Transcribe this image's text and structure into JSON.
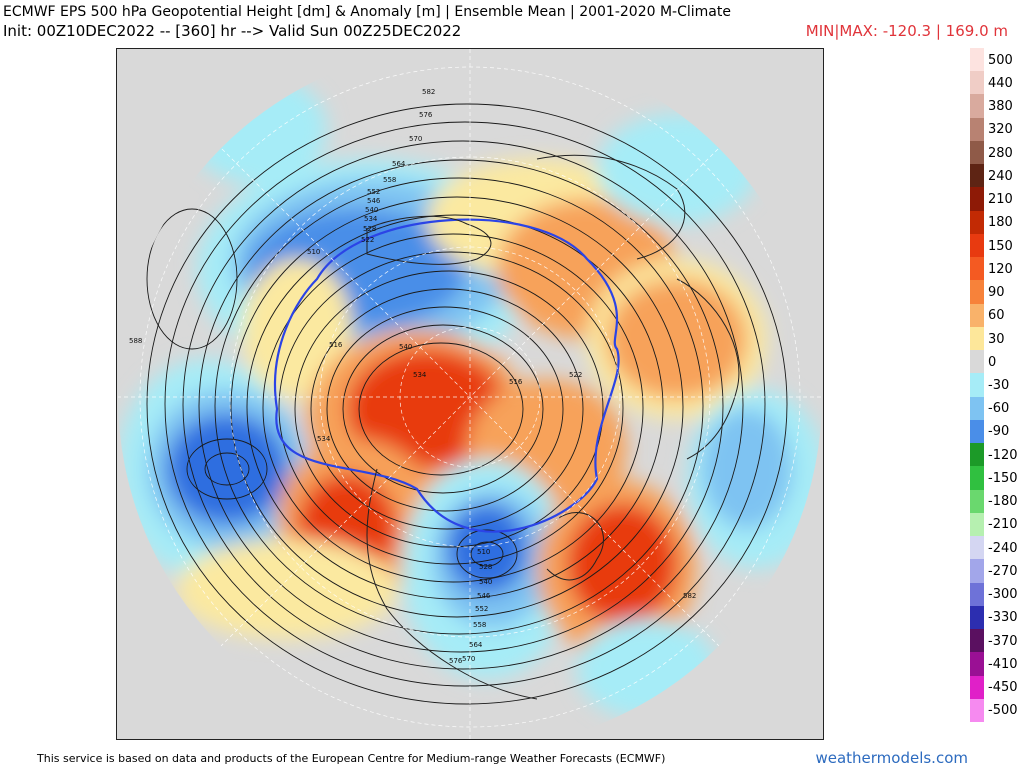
{
  "header": {
    "title": "ECMWF EPS 500 hPa Geopotential Height [dm] & Anomaly [m] | Ensemble Mean | 2001-2020 M-Climate",
    "init_line": "Init: 00Z10DEC2022 -- [360] hr --> Valid Sun 00Z25DEC2022",
    "minmax": "MIN|MAX: -120.3 | 169.0 m"
  },
  "map": {
    "contour_labels": [
      "582",
      "576",
      "570",
      "564",
      "558",
      "552",
      "546",
      "540",
      "534",
      "528",
      "522",
      "516",
      "510",
      "540",
      "534",
      "522",
      "516",
      "510",
      "528",
      "534",
      "540",
      "546",
      "552",
      "558",
      "564",
      "570",
      "576",
      "582",
      "588"
    ],
    "colors": {
      "ocean_land_bg": "#d9d9d9",
      "strong_positive": "#e83a10",
      "positive": "#f7a25a",
      "weak_positive": "#fbe9a0",
      "weak_negative": "#a6ecf7",
      "negative": "#68a8ec",
      "strong_negative": "#2f6ee0",
      "contour_540": "#2b44e6"
    }
  },
  "legend": {
    "items": [
      {
        "label": "500",
        "color": "#fde3e0"
      },
      {
        "label": "440",
        "color": "#f0cdc6"
      },
      {
        "label": "380",
        "color": "#d9aa9e"
      },
      {
        "label": "320",
        "color": "#b88272"
      },
      {
        "label": "280",
        "color": "#8f5a48"
      },
      {
        "label": "240",
        "color": "#5e2414"
      },
      {
        "label": "210",
        "color": "#8e1a06"
      },
      {
        "label": "180",
        "color": "#c22a04"
      },
      {
        "label": "150",
        "color": "#e83a10"
      },
      {
        "label": "120",
        "color": "#f45a22"
      },
      {
        "label": "90",
        "color": "#f7823a"
      },
      {
        "label": "60",
        "color": "#f9b26a"
      },
      {
        "label": "30",
        "color": "#fde79a"
      },
      {
        "label": "0",
        "color": "#d9d9d9"
      },
      {
        "label": "-30",
        "color": "#a6ecf7"
      },
      {
        "label": "-60",
        "color": "#7ec3f2"
      },
      {
        "label": "-90",
        "color": "#4a8ee8"
      },
      {
        "label": "-120",
        "color": "#1c9a28"
      },
      {
        "label": "-150",
        "color": "#30c040"
      },
      {
        "label": "-180",
        "color": "#6ad86e"
      },
      {
        "label": "-210",
        "color": "#b6f0b0"
      },
      {
        "label": "-240",
        "color": "#d4d6f2"
      },
      {
        "label": "-270",
        "color": "#a2a6ea"
      },
      {
        "label": "-300",
        "color": "#6e72d8"
      },
      {
        "label": "-330",
        "color": "#2c2eb0"
      },
      {
        "label": "-370",
        "color": "#5a1060"
      },
      {
        "label": "-410",
        "color": "#9a1094"
      },
      {
        "label": "-450",
        "color": "#e020c8"
      },
      {
        "label": "-500",
        "color": "#f68af0"
      }
    ]
  },
  "footer": {
    "attribution": "This service is based on data and products of the European Centre for Medium-range Weather Forecasts (ECMWF)",
    "brand": "weathermodels.com"
  }
}
